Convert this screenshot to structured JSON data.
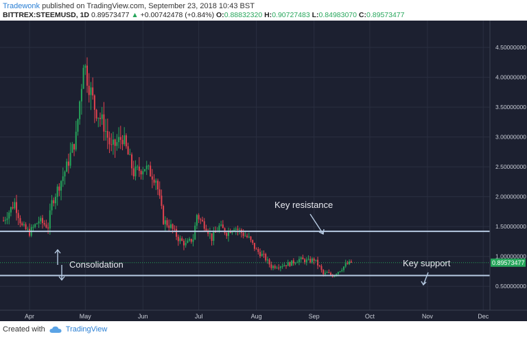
{
  "header": {
    "author": "Tradewonk",
    "published_text": "published on TradingView.com, September 23, 2018 10:43 BST",
    "symbol": "BITTREX:STEEMUSD, 1D",
    "last": "0.89573477",
    "change_arrow": "▲",
    "change": "+0.00742478 (+0.84%)",
    "o_label": "O:",
    "o_value": "0.88832320",
    "h_label": "H:",
    "h_value": "0.90727483",
    "l_label": "L:",
    "l_value": "0.84983070",
    "c_label": "C:",
    "c_value": "0.89573477"
  },
  "footer": {
    "created_with": "Created with",
    "brand": "TradingView",
    "logo_icon": "tradingview-cloud-icon"
  },
  "colors": {
    "background": "#1c2030",
    "up": "#26a65b",
    "down": "#e2434f",
    "line": "#b8cce4",
    "price_tag": "#26a65b",
    "text": "#c9cdd6"
  },
  "chart_data": {
    "type": "candlestick",
    "title": "",
    "x_ticks": [
      "Apr",
      "May",
      "Jun",
      "Jul",
      "Aug",
      "Sep",
      "Oct",
      "Nov",
      "Dec"
    ],
    "x_tick_days": [
      0,
      30,
      61,
      91,
      122,
      153,
      183,
      214,
      244
    ],
    "y_ticks": [
      "0.50000000",
      "1.00000000",
      "1.50000000",
      "2.00000000",
      "2.50000000",
      "3.00000000",
      "3.50000000",
      "4.00000000",
      "4.50000000"
    ],
    "y_tick_values": [
      0.5,
      1.0,
      1.5,
      2.0,
      2.5,
      3.0,
      3.5,
      4.0,
      4.5
    ],
    "ylim": [
      0.1,
      4.95
    ],
    "grid": true,
    "close_anchor_days": [
      -14,
      -8,
      -4,
      0,
      5,
      10,
      12,
      16,
      20,
      22,
      25,
      28,
      29,
      31,
      35,
      40,
      44,
      50,
      56,
      62,
      68,
      72,
      76,
      80,
      84,
      88,
      90,
      92,
      95,
      98,
      102,
      106,
      110,
      114,
      118,
      122,
      126,
      130,
      135,
      140,
      145,
      150,
      153,
      156,
      158,
      160,
      163,
      166,
      168,
      170,
      173
    ],
    "close_anchor_values": [
      1.6,
      1.9,
      1.5,
      1.4,
      1.6,
      1.5,
      1.9,
      2.2,
      2.5,
      2.7,
      3.0,
      3.9,
      4.3,
      4.0,
      3.5,
      3.2,
      2.8,
      3.0,
      2.4,
      2.5,
      2.3,
      1.6,
      1.5,
      1.3,
      1.2,
      1.3,
      1.7,
      1.6,
      1.5,
      1.3,
      1.5,
      1.4,
      1.5,
      1.4,
      1.3,
      1.1,
      1.0,
      0.83,
      0.85,
      0.88,
      0.95,
      0.92,
      0.95,
      0.82,
      0.7,
      0.72,
      0.68,
      0.75,
      0.8,
      0.86,
      0.896
    ],
    "current_price": "0.89573477",
    "current_price_value": 0.8957,
    "levels": [
      {
        "label": "Key resistance",
        "value": 1.42
      },
      {
        "label": "Key support",
        "value": 0.68
      }
    ],
    "annotations": [
      {
        "text": "Key resistance"
      },
      {
        "text": "Consolidation"
      },
      {
        "text": "Key support"
      }
    ]
  }
}
